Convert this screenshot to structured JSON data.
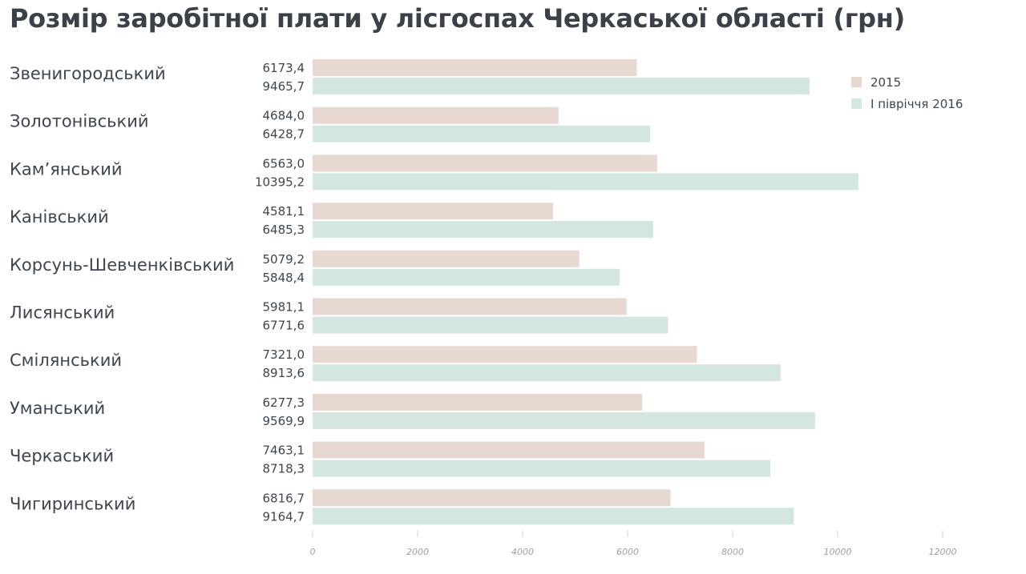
{
  "chart_data": {
    "type": "bar",
    "orientation": "horizontal",
    "title": "Розмір заробітної плати у лісгоспах Черкаської області (грн)",
    "categories": [
      "Звенигородський",
      "Золотонівський",
      "Кам’янський",
      "Канівський",
      "Корсунь-Шевченківський",
      "Лисянський",
      "Смілянський",
      "Уманський",
      "Черкаський",
      "Чигиринський"
    ],
    "series": [
      {
        "name": "2015",
        "color": "#e8d8d2",
        "values": [
          6173.4,
          4684.0,
          6563.0,
          4581.1,
          5079.2,
          5981.1,
          7321.0,
          6277.3,
          7463.1,
          6816.7
        ],
        "value_labels": [
          "6173,4",
          "4684,0",
          "6563,0",
          "4581,1",
          "5079,2",
          "5981,1",
          "7321,0",
          "6277,3",
          "7463,1",
          "6816,7"
        ]
      },
      {
        "name": "І півріччя 2016",
        "color": "#d3e6e0",
        "values": [
          9465.7,
          6428.7,
          10395.2,
          6485.3,
          5848.4,
          6771.6,
          8913.6,
          9569.9,
          8718.3,
          9164.7
        ],
        "value_labels": [
          "9465,7",
          "6428,7",
          "10395,2",
          "6485,3",
          "5848,4",
          "6771,6",
          "8913,6",
          "9569,9",
          "8718,3",
          "9164,7"
        ]
      }
    ],
    "xlim": [
      0,
      12000
    ],
    "xticks": [
      0,
      2000,
      4000,
      6000,
      8000,
      10000,
      12000
    ],
    "xtick_labels": [
      "0",
      "2000",
      "4000",
      "6000",
      "8000",
      "10000",
      "12000"
    ],
    "grid": false,
    "legend_position": "top-right"
  }
}
